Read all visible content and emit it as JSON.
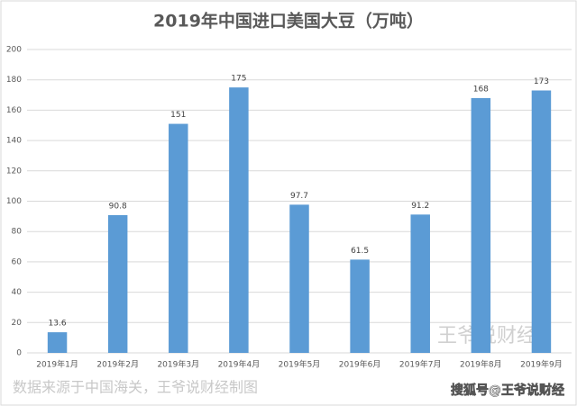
{
  "chart_data": {
    "type": "bar",
    "title": "2019年中国进口美国大豆（万吨）",
    "categories": [
      "2019年1月",
      "2019年2月",
      "2019年3月",
      "2019年4月",
      "2019年5月",
      "2019年6月",
      "2019年7月",
      "2019年8月",
      "2019年9月"
    ],
    "values": [
      13.6,
      90.8,
      151,
      175,
      97.7,
      61.5,
      91.2,
      168,
      173
    ],
    "color": "#5b9bd5",
    "ylim": [
      0,
      200
    ],
    "yticks": [
      0,
      20,
      40,
      60,
      80,
      100,
      120,
      140,
      160,
      180,
      200
    ],
    "grid": true,
    "watermark": "王爷说财经",
    "source": "数据来源于中国海关，王爷说财经制图",
    "credit": "搜狐号@王爷说财经"
  }
}
